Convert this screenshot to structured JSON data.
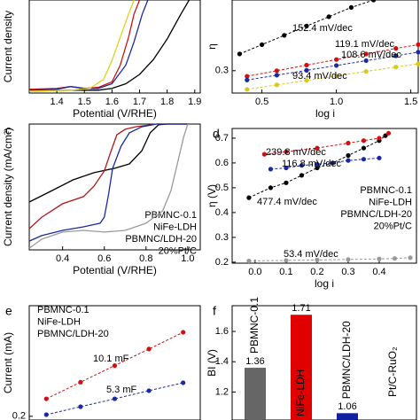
{
  "chart_data": [
    {
      "type": "line",
      "xlabel": "Potential (V/RHE)",
      "ylabel": "Current density",
      "xlim": [
        1.3,
        1.92
      ],
      "ylim": [
        0,
        1
      ],
      "xticks": [
        1.4,
        1.5,
        1.6,
        1.7,
        1.8,
        1.9
      ],
      "yticks": [],
      "series": [
        {
          "color": "#000000",
          "x": [
            1.3,
            1.45,
            1.55,
            1.6,
            1.65,
            1.7,
            1.75,
            1.8,
            1.85,
            1.88
          ],
          "values": [
            0.02,
            0.03,
            0.03,
            0.05,
            0.1,
            0.2,
            0.36,
            0.58,
            0.85,
            1.0
          ]
        },
        {
          "color": "#d01010",
          "x": [
            1.3,
            1.4,
            1.45,
            1.5,
            1.55,
            1.6,
            1.63,
            1.66,
            1.68,
            1.7
          ],
          "values": [
            0.04,
            0.05,
            0.07,
            0.05,
            0.06,
            0.12,
            0.3,
            0.6,
            0.85,
            1.0
          ]
        },
        {
          "color": "#1a2aa0",
          "x": [
            1.3,
            1.4,
            1.45,
            1.5,
            1.55,
            1.6,
            1.65,
            1.68,
            1.71,
            1.73
          ],
          "values": [
            0.03,
            0.04,
            0.07,
            0.05,
            0.05,
            0.1,
            0.3,
            0.55,
            0.85,
            1.0
          ]
        },
        {
          "color": "#e0d020",
          "x": [
            1.3,
            1.45,
            1.52,
            1.57,
            1.6,
            1.63,
            1.66,
            1.68
          ],
          "values": [
            0.02,
            0.03,
            0.05,
            0.15,
            0.35,
            0.6,
            0.85,
            1.0
          ]
        }
      ]
    },
    {
      "type": "scatter",
      "xlabel": "log i",
      "ylabel": "η",
      "xlim": [
        0.3,
        1.55
      ],
      "ylim": [
        0.24,
        0.49
      ],
      "xticks": [
        0.5,
        {
          "value": 1,
          "label": "1.0"
        },
        1.5
      ],
      "yticks": [
        0.3
      ],
      "series": [
        {
          "color": "#000000",
          "x": [
            0.35,
            0.5,
            0.65,
            0.8,
            0.95,
            1.1,
            1.25
          ],
          "values": [
            0.345,
            0.37,
            0.395,
            0.42,
            0.445,
            0.47,
            0.49
          ]
        },
        {
          "color": "#d01010",
          "x": [
            0.4,
            0.6,
            0.8,
            1.0,
            1.2,
            1.4,
            1.55
          ],
          "values": [
            0.285,
            0.3,
            0.315,
            0.33,
            0.345,
            0.36,
            0.37
          ]
        },
        {
          "color": "#1a2aa0",
          "x": [
            0.4,
            0.6,
            0.8,
            1.0,
            1.2,
            1.4,
            1.55
          ],
          "values": [
            0.275,
            0.288,
            0.301,
            0.314,
            0.327,
            0.34,
            0.35
          ]
        },
        {
          "color": "#d8c820",
          "x": [
            0.4,
            0.6,
            0.8,
            1.0,
            1.2,
            1.4,
            1.55
          ],
          "values": [
            0.25,
            0.262,
            0.274,
            0.286,
            0.298,
            0.31,
            0.318
          ]
        }
      ],
      "annotations": [
        {
          "text": "152.4 mV/dec",
          "color": "#000000"
        },
        {
          "text": "119.1 mV/dec",
          "color": "#d01010"
        },
        {
          "text": "108.6 mV/dec",
          "color": "#1a2aa0"
        },
        {
          "text": "93.4 mV/dec",
          "color": "#d8c820"
        }
      ]
    },
    {
      "type": "line",
      "panel": "c",
      "xlabel": "Potential (V/RHE)",
      "ylabel": "Current density (mA/cm²)",
      "xlim": [
        0.24,
        1.06
      ],
      "ylim": [
        -6,
        0
      ],
      "xticks": [
        0.4,
        0.6,
        0.8,
        {
          "value": 1,
          "label": "1.0"
        }
      ],
      "yticks": [],
      "series": [
        {
          "name": "PBMNC-0.1",
          "color": "#000000",
          "x": [
            0.24,
            0.35,
            0.45,
            0.55,
            0.65,
            0.72,
            0.78,
            0.82,
            0.86,
            0.9,
            1.0
          ],
          "values": [
            -3.72,
            -3.17,
            -2.66,
            -2.32,
            -2.11,
            -1.9,
            -1.27,
            -0.42,
            -0.04,
            0,
            0
          ]
        },
        {
          "name": "NiFe-LDH",
          "color": "#b01818",
          "x": [
            0.24,
            0.3,
            0.4,
            0.5,
            0.55,
            0.6,
            0.63,
            0.66,
            0.7,
            0.75,
            0.85,
            1.0
          ],
          "values": [
            -4.99,
            -4.44,
            -3.8,
            -3.46,
            -2.96,
            -2.24,
            -1.35,
            -0.51,
            -0.25,
            -0.13,
            0,
            0
          ]
        },
        {
          "name": "PBMNC/LDH-20",
          "color": "#1a2aa0",
          "x": [
            0.24,
            0.3,
            0.4,
            0.5,
            0.58,
            0.6,
            0.62,
            0.64,
            0.68,
            0.72,
            0.78,
            0.85,
            1.0
          ],
          "values": [
            -5.58,
            -5.32,
            -5.07,
            -4.9,
            -4.73,
            -4.44,
            -3.38,
            -2.11,
            -1.06,
            -0.42,
            -0.13,
            0,
            0
          ]
        },
        {
          "name": "20%Pt/C",
          "color": "#999999",
          "x": [
            0.24,
            0.3,
            0.4,
            0.5,
            0.6,
            0.7,
            0.8,
            0.88,
            0.92,
            0.95,
            0.98,
            1.0
          ],
          "values": [
            -5.92,
            -5.49,
            -5.15,
            -5.07,
            -5.15,
            -5.07,
            -4.73,
            -4.14,
            -3.17,
            -1.9,
            -0.63,
            0
          ]
        }
      ]
    },
    {
      "type": "scatter",
      "panel": "d",
      "xlabel": "log i",
      "ylabel": "η (V)",
      "xlim": [
        -0.074,
        0.52
      ],
      "ylim": [
        0.196,
        0.739
      ],
      "xticks": [
        {
          "value": 0,
          "label": "0.0"
        },
        0.1,
        0.2,
        0.3,
        0.4
      ],
      "yticks": [
        0.2,
        0.3,
        0.4,
        0.5,
        0.6,
        0.7
      ],
      "series": [
        {
          "name": "PBMNC-0.1",
          "color": "#000000",
          "x": [
            -0.02,
            0.05,
            0.1,
            0.15,
            0.2,
            0.25,
            0.3,
            0.35,
            0.4,
            0.42
          ],
          "values": [
            0.46,
            0.5,
            0.52,
            0.55,
            0.58,
            0.6,
            0.63,
            0.66,
            0.69,
            0.71
          ]
        },
        {
          "name": "NiFe-LDH",
          "color": "#d01010",
          "x": [
            0.03,
            0.1,
            0.2,
            0.3,
            0.35,
            0.4,
            0.43
          ],
          "values": [
            0.635,
            0.645,
            0.66,
            0.68,
            0.69,
            0.7,
            0.72
          ]
        },
        {
          "name": "PBMNC/LDH-20",
          "color": "#1a2aa0",
          "x": [
            0.05,
            0.1,
            0.15,
            0.2,
            0.25,
            0.3,
            0.35,
            0.4
          ],
          "values": [
            0.575,
            0.58,
            0.59,
            0.595,
            0.6,
            0.61,
            0.615,
            0.62
          ]
        },
        {
          "name": "20%Pt/C",
          "color": "#999999",
          "x": [
            -0.02,
            0.1,
            0.2,
            0.3,
            0.4,
            0.45,
            0.5
          ],
          "values": [
            0.205,
            0.207,
            0.209,
            0.211,
            0.213,
            0.215,
            0.218
          ]
        }
      ],
      "annotations": [
        {
          "text": "239.8 mV/dec",
          "color": "#d01010"
        },
        {
          "text": "116.8 mV/dec",
          "color": "#1a2aa0"
        },
        {
          "text": "477.4 mV/dec",
          "color": "#000000"
        },
        {
          "text": "53.4 mV/dec",
          "color": "#999999"
        }
      ]
    },
    {
      "type": "scatter",
      "panel": "e",
      "ylabel": "Current (mA)",
      "xlim": [
        0,
        1
      ],
      "ylim": [
        0.18,
        0.8
      ],
      "xticks": [],
      "yticks": [
        0.2
      ],
      "series": [
        {
          "name": "PBMNC-0.1",
          "color": "#000000",
          "x": [],
          "values": []
        },
        {
          "name": "NiFe-LDH",
          "color": "#d01010",
          "x": [
            0.1,
            0.3,
            0.5,
            0.7,
            0.9
          ],
          "values": [
            0.295,
            0.385,
            0.475,
            0.565,
            0.656
          ]
        },
        {
          "name": "PBMNC/LDH-20",
          "color": "#1a2aa0",
          "x": [
            0.1,
            0.3,
            0.5,
            0.7,
            0.9
          ],
          "values": [
            0.209,
            0.252,
            0.295,
            0.339,
            0.382
          ]
        }
      ],
      "annotations": [
        {
          "text": "10.1 mF",
          "color": "#d01010"
        },
        {
          "text": "5.3 mF",
          "color": "#1a2aa0"
        }
      ]
    },
    {
      "type": "bar",
      "panel": "f",
      "ylabel": "BI (V)",
      "ylim": [
        1.015,
        1.77
      ],
      "yticks": [
        1.2,
        1.4,
        1.6
      ],
      "categories": [
        "PBMNC-0.1",
        "NiFe-LDH",
        "PBMNC/LDH-20",
        "Pt/C-RuO₂"
      ],
      "values": [
        1.36,
        1.71,
        1.06,
        null
      ],
      "colors": [
        "#666666",
        "#e00000",
        "#1020a0",
        "#000000"
      ]
    }
  ]
}
